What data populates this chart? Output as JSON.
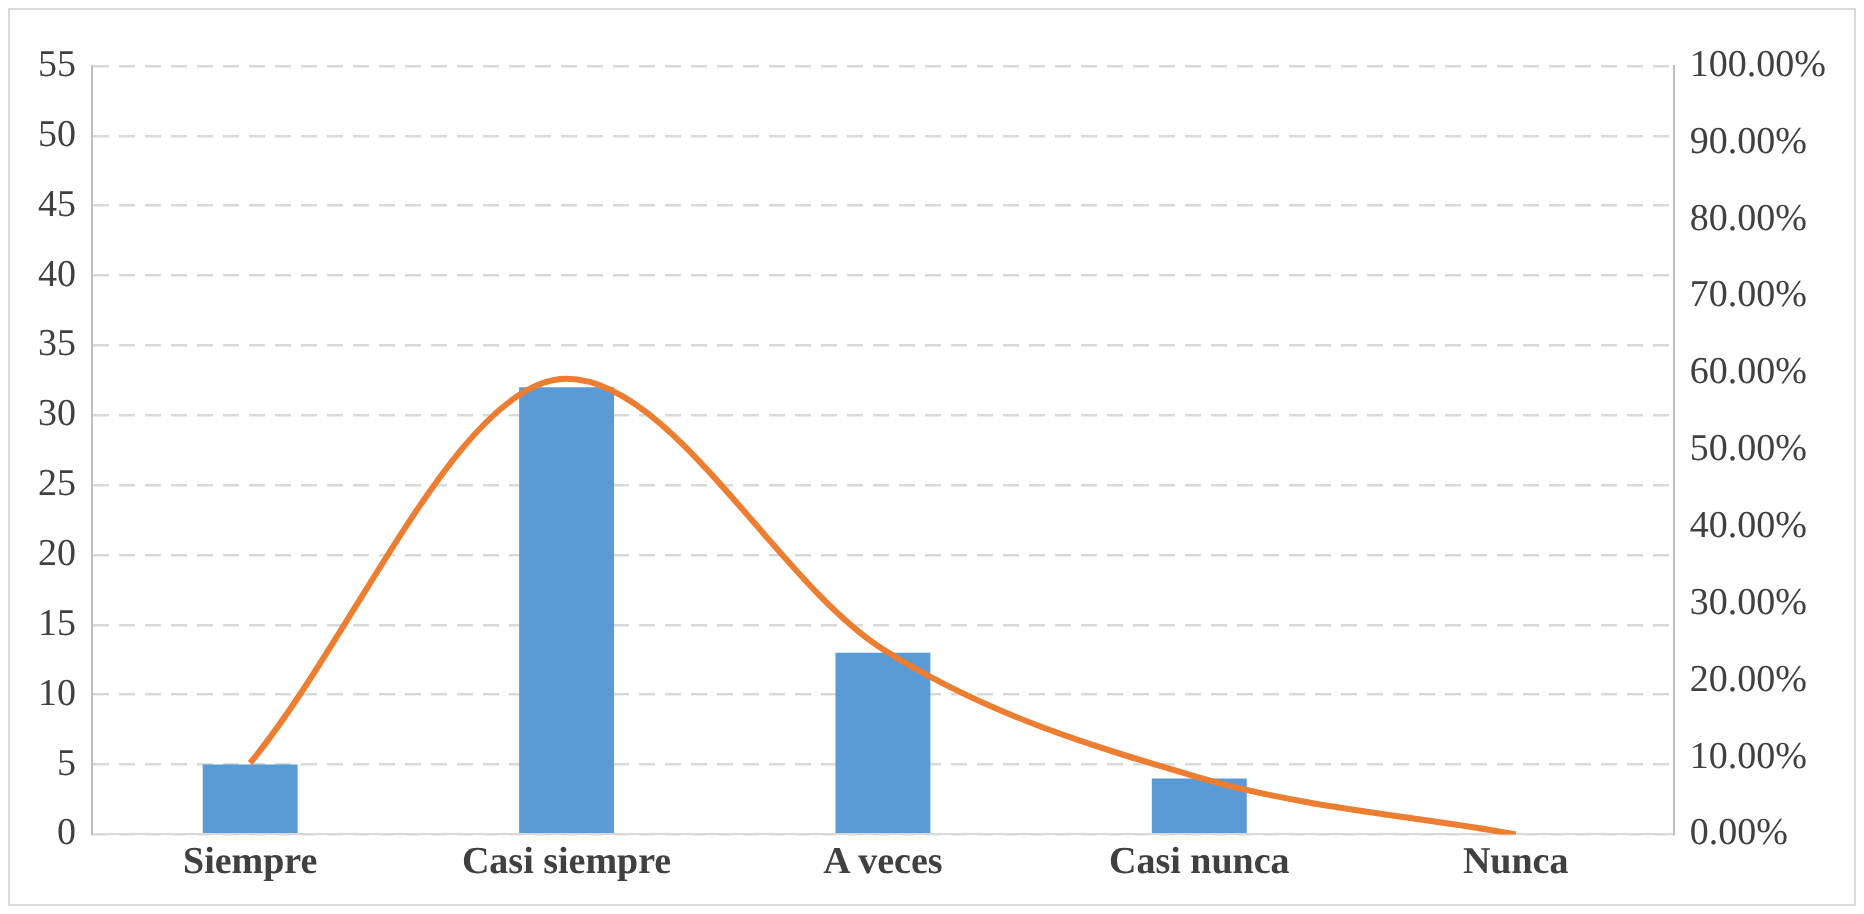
{
  "chart_data": {
    "type": "bar",
    "categories": [
      "Siempre",
      "Casi siempre",
      "A veces",
      "Casi nunca",
      "Nunca"
    ],
    "series": [
      {
        "color": "#5b9bd5",
        "values": [
          5,
          32,
          13,
          4,
          0
        ]
      },
      {
        "type": "line",
        "axis": "y2",
        "color": "#ed7d31",
        "values": [
          9.3,
          59.3,
          24.1,
          7.4,
          0
        ]
      }
    ],
    "ylim": [
      0,
      55
    ],
    "yticks": [
      0,
      5,
      10,
      15,
      20,
      25,
      30,
      35,
      40,
      45,
      50,
      55
    ],
    "y2lim": [
      0,
      100
    ],
    "y2ticks": [
      {
        "value": 0,
        "label": "0.00%"
      },
      {
        "value": 10,
        "label": "10.00%"
      },
      {
        "value": 20,
        "label": "20.00%"
      },
      {
        "value": 30,
        "label": "30.00%"
      },
      {
        "value": 40,
        "label": "40.00%"
      },
      {
        "value": 50,
        "label": "50.00%"
      },
      {
        "value": 60,
        "label": "60.00%"
      },
      {
        "value": 70,
        "label": "70.00%"
      },
      {
        "value": 80,
        "label": "80.00%"
      },
      {
        "value": 90,
        "label": "90.00%"
      },
      {
        "value": 100,
        "label": "100.00%"
      }
    ],
    "grid": "y",
    "marker": "none",
    "line_style": "solid"
  }
}
